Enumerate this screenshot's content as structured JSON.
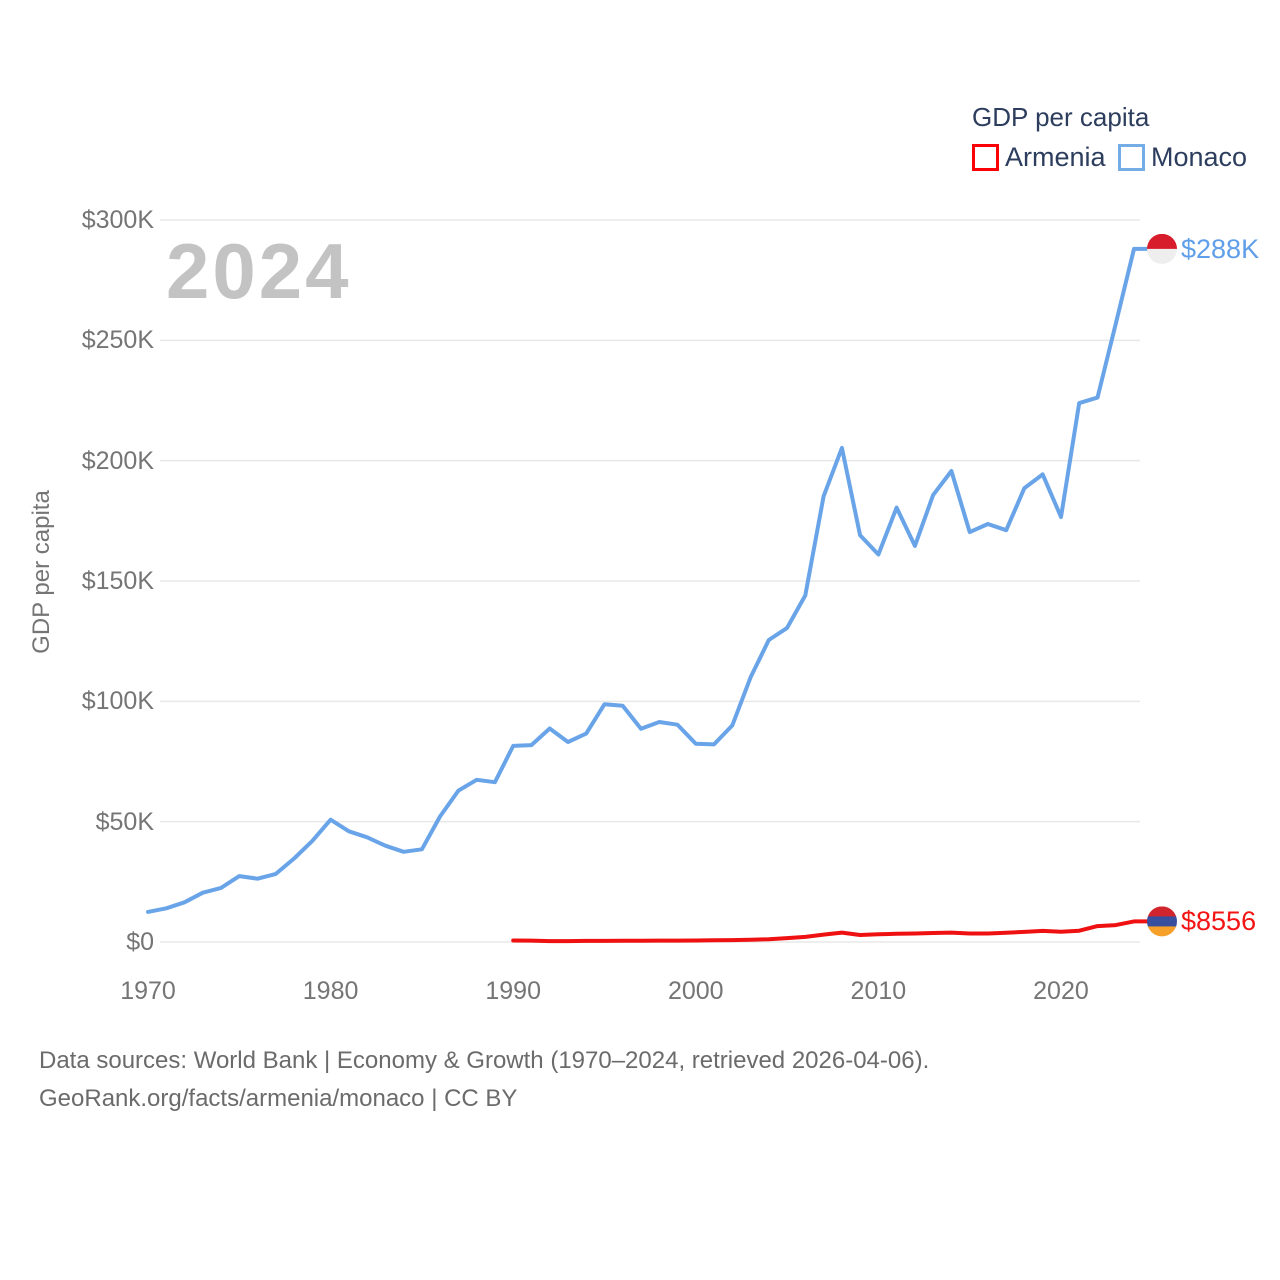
{
  "legend": {
    "title": "GDP per capita",
    "items": [
      {
        "label": "Armenia",
        "swatch_color": "#fb0005"
      },
      {
        "label": "Monaco",
        "swatch_color": "#74ace6"
      }
    ]
  },
  "watermark": "2024",
  "axis": {
    "y_title": "GDP per capita"
  },
  "footer": {
    "line1": "Data sources: World Bank | Economy & Growth (1970–2024, retrieved 2026-04-06).",
    "line2": "GeoRank.org/facts/armenia/monaco | CC BY"
  },
  "chart_data": {
    "type": "line",
    "title": "GDP per capita",
    "xlabel": "",
    "ylabel": "GDP per capita",
    "xlim": [
      1970,
      2024
    ],
    "ylim": [
      0,
      300000
    ],
    "grid": true,
    "legend_position": "top-right",
    "yticks": [
      {
        "value": 0,
        "label": "$0"
      },
      {
        "value": 50000,
        "label": "$50K"
      },
      {
        "value": 100000,
        "label": "$100K"
      },
      {
        "value": 150000,
        "label": "$150K"
      },
      {
        "value": 200000,
        "label": "$200K"
      },
      {
        "value": 250000,
        "label": "$250K"
      },
      {
        "value": 300000,
        "label": "$300K"
      }
    ],
    "xticks": [
      {
        "value": 1970,
        "label": "1970"
      },
      {
        "value": 1980,
        "label": "1980"
      },
      {
        "value": 1990,
        "label": "1990"
      },
      {
        "value": 2000,
        "label": "2000"
      },
      {
        "value": 2010,
        "label": "2010"
      },
      {
        "value": 2020,
        "label": "2020"
      }
    ],
    "series": [
      {
        "name": "Armenia",
        "color": "#ef1111",
        "label_color": "#f31414",
        "end_label": "$8556",
        "end_value": 8556,
        "flag_colors": [
          "#d2242c",
          "#374f9e",
          "#f6a02a"
        ],
        "start_year": 1990,
        "values": [
          640,
          570,
          370,
          385,
          440,
          455,
          505,
          520,
          595,
          580,
          605,
          695,
          785,
          925,
          1180,
          1625,
          2125,
          3080,
          3915,
          2915,
          3220,
          3420,
          3540,
          3730,
          3890,
          3530,
          3525,
          3870,
          4195,
          4605,
          4265,
          4680,
          6590,
          7020,
          8556
        ]
      },
      {
        "name": "Monaco",
        "color": "#69a4e8",
        "label_color": "#5f9ee9",
        "end_label": "$288K",
        "end_value": 288000,
        "flag_colors": [
          "#d71c2c",
          "#eeeeee"
        ],
        "start_year": 1970,
        "values": [
          12500,
          14000,
          16500,
          20500,
          22500,
          27400,
          26300,
          28300,
          34700,
          42000,
          50800,
          46000,
          43500,
          40000,
          37500,
          38500,
          52200,
          62900,
          67400,
          66400,
          81500,
          81800,
          88700,
          83100,
          86600,
          98800,
          98200,
          88600,
          91400,
          90300,
          82400,
          82100,
          90000,
          110000,
          125500,
          130500,
          144000,
          185200,
          205300,
          169000,
          161000,
          180500,
          164600,
          185700,
          195700,
          170300,
          173700,
          171100,
          188600,
          194300,
          176600,
          223900,
          226200,
          256800,
          288000
        ]
      }
    ]
  }
}
